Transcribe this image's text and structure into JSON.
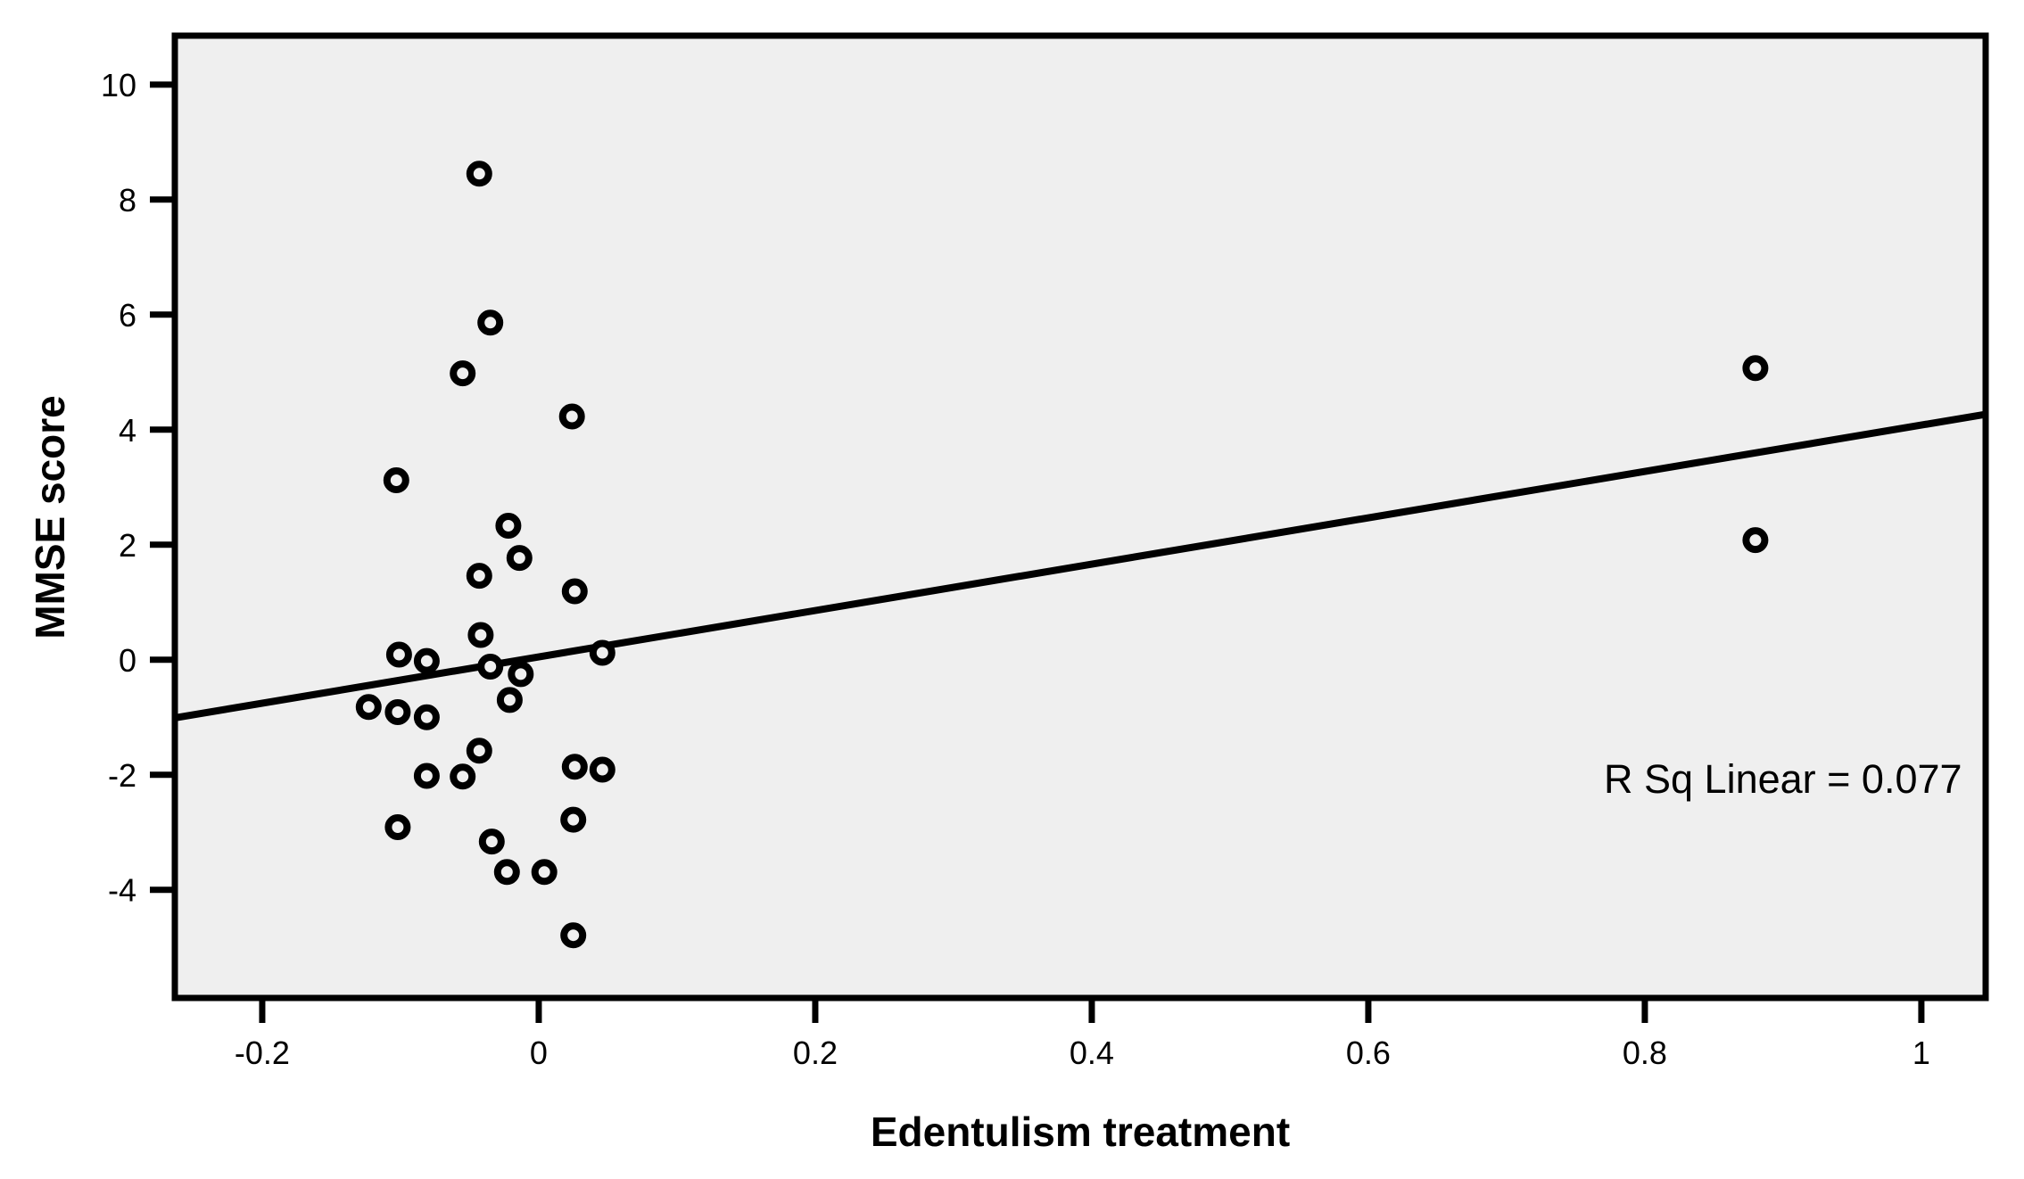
{
  "figure": {
    "background": "#FFFFFF"
  },
  "chart_data": {
    "type": "scatter",
    "title": "",
    "xlabel": "Edentulism treatment",
    "ylabel": "MMSE score",
    "annotation": "R Sq Linear = 0.077",
    "r_sq_linear": 0.077,
    "grid": false,
    "legend_position": "none",
    "plot_bg": "#EFEFEF",
    "frame_color": "#000000",
    "marker": {
      "shape": "open-circle",
      "color": "#000000"
    },
    "xlim": [
      -0.2632,
      1.0465
    ],
    "ylim": [
      -5.88,
      10.85
    ],
    "x_ticks": [
      {
        "value": -0.2,
        "label": "-0.2"
      },
      {
        "value": 0,
        "label": "0"
      },
      {
        "value": 0.2,
        "label": "0.2"
      },
      {
        "value": 0.4,
        "label": "0.4"
      },
      {
        "value": 0.6,
        "label": "0.6"
      },
      {
        "value": 0.8,
        "label": "0.8"
      },
      {
        "value": 1,
        "label": "1"
      }
    ],
    "y_ticks": [
      {
        "value": 10,
        "label": "10"
      },
      {
        "value": 8,
        "label": "8"
      },
      {
        "value": 6,
        "label": "6"
      },
      {
        "value": 4,
        "label": "4"
      },
      {
        "value": 2,
        "label": "2"
      },
      {
        "value": 0,
        "label": "0"
      },
      {
        "value": -2,
        "label": "-2"
      },
      {
        "value": -4,
        "label": "-4"
      }
    ],
    "points": [
      [
        -0.043,
        8.45
      ],
      [
        -0.035,
        5.86
      ],
      [
        -0.055,
        4.98
      ],
      [
        0.024,
        4.23
      ],
      [
        -0.103,
        3.12
      ],
      [
        -0.022,
        2.33
      ],
      [
        -0.014,
        1.77
      ],
      [
        -0.043,
        1.46
      ],
      [
        0.026,
        1.19
      ],
      [
        -0.042,
        0.43
      ],
      [
        -0.101,
        0.09
      ],
      [
        -0.081,
        -0.02
      ],
      [
        -0.035,
        -0.12
      ],
      [
        -0.013,
        -0.25
      ],
      [
        0.046,
        0.12
      ],
      [
        -0.021,
        -0.7
      ],
      [
        -0.123,
        -0.82
      ],
      [
        -0.102,
        -0.91
      ],
      [
        -0.081,
        -1.0
      ],
      [
        -0.043,
        -1.58
      ],
      [
        -0.081,
        -2.02
      ],
      [
        -0.055,
        -2.03
      ],
      [
        0.026,
        -1.86
      ],
      [
        0.046,
        -1.91
      ],
      [
        0.025,
        -2.78
      ],
      [
        -0.102,
        -2.91
      ],
      [
        -0.034,
        -3.16
      ],
      [
        -0.023,
        -3.69
      ],
      [
        0.004,
        -3.69
      ],
      [
        0.025,
        -4.79
      ],
      [
        0.88,
        5.07
      ],
      [
        0.88,
        2.08
      ]
    ],
    "fit_line": {
      "slope": 4.03,
      "intercept": 0.05
    }
  }
}
